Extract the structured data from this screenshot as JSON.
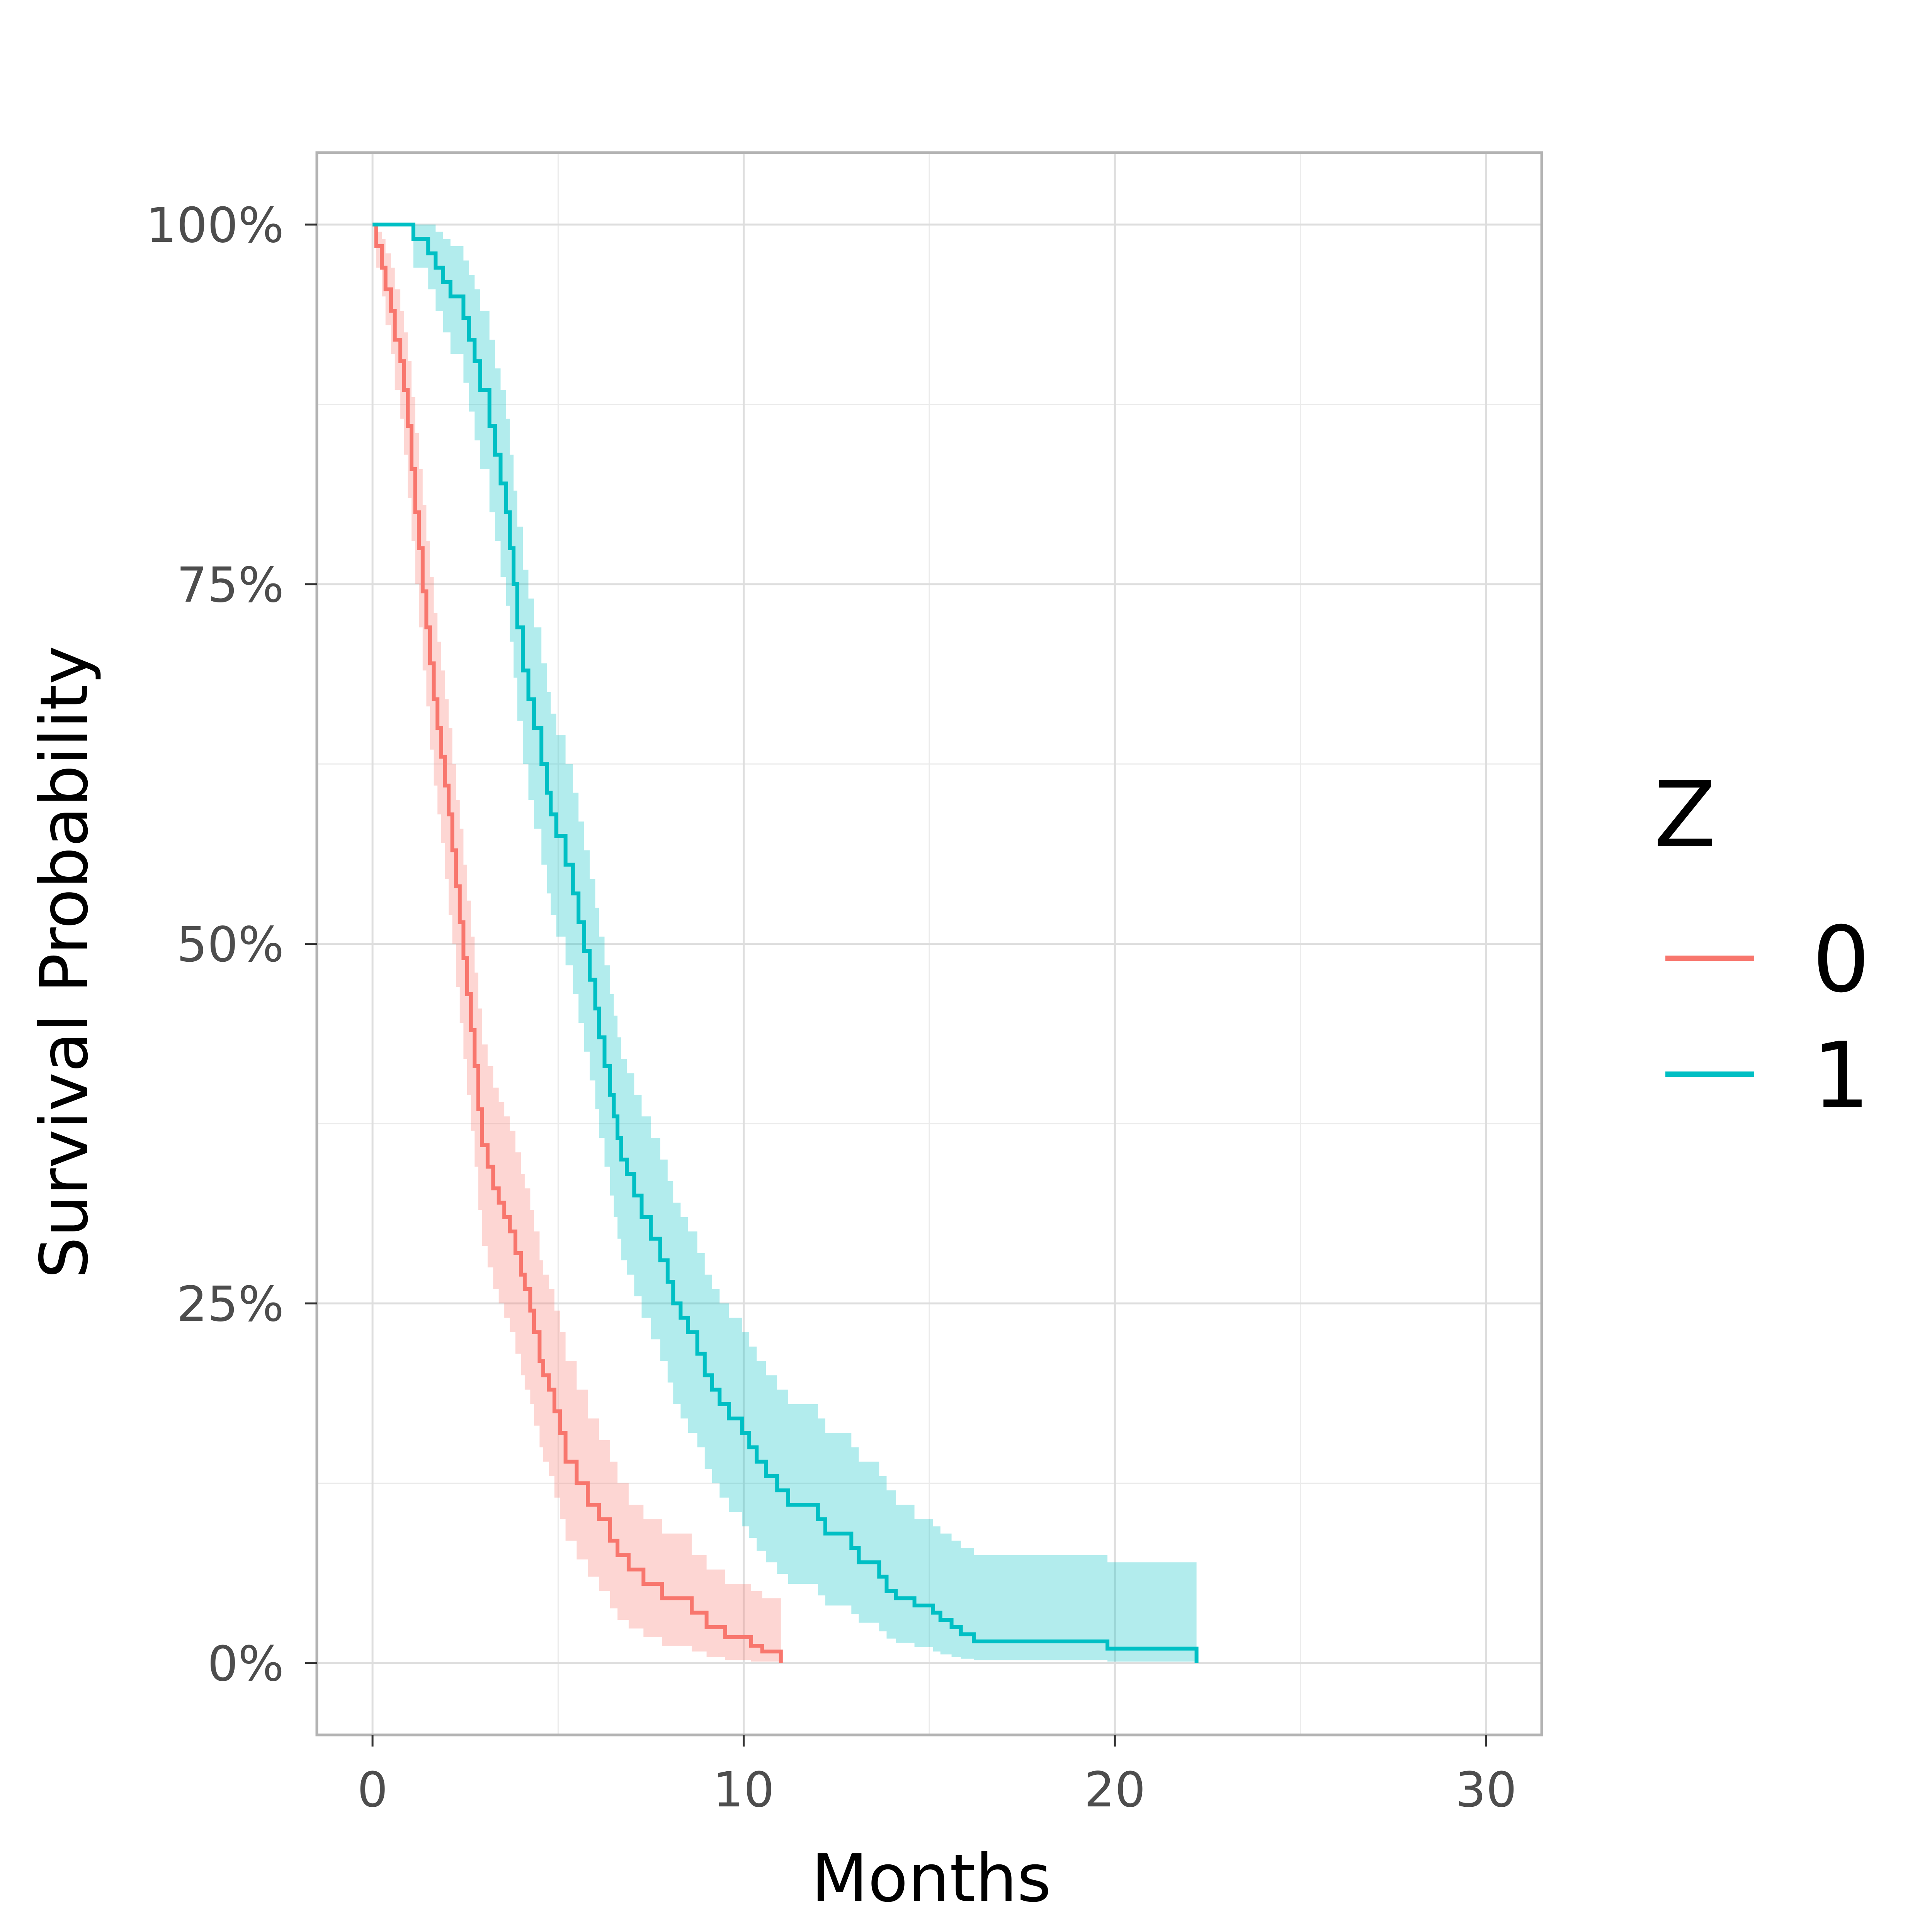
{
  "chart_data": {
    "type": "line",
    "title": "",
    "xlabel": "Months",
    "ylabel": "Survival Probability",
    "xlim": [
      -1.5,
      31.5
    ],
    "ylim": [
      -0.05,
      1.05
    ],
    "x_ticks": [
      0,
      10,
      20,
      30
    ],
    "x_tick_labels": [
      "0",
      "10",
      "20",
      "30"
    ],
    "y_ticks": [
      0,
      0.25,
      0.5,
      0.75,
      1.0
    ],
    "y_tick_labels": [
      "0%",
      "25%",
      "50%",
      "75%",
      "100%"
    ],
    "grid": true,
    "legend": {
      "title": "Z",
      "position": "right",
      "entries": [
        "0",
        "1"
      ]
    },
    "series": [
      {
        "name": "0",
        "color": "#F8766D",
        "x": [
          0,
          0.1,
          0.25,
          0.35,
          0.5,
          0.6,
          0.75,
          0.85,
          0.95,
          1.05,
          1.15,
          1.25,
          1.35,
          1.45,
          1.55,
          1.65,
          1.75,
          1.85,
          1.95,
          2.05,
          2.15,
          2.25,
          2.35,
          2.45,
          2.55,
          2.65,
          2.75,
          2.85,
          2.95,
          3.1,
          3.25,
          3.4,
          3.55,
          3.7,
          3.85,
          4.0,
          4.1,
          4.25,
          4.35,
          4.5,
          4.6,
          4.75,
          4.9,
          5.05,
          5.2,
          5.5,
          5.8,
          6.1,
          6.4,
          6.6,
          6.9,
          7.3,
          7.8,
          8.6,
          9.0,
          9.5,
          10.2,
          10.5,
          11.0
        ],
        "y": [
          1.0,
          0.985,
          0.97,
          0.955,
          0.94,
          0.92,
          0.905,
          0.885,
          0.86,
          0.83,
          0.8,
          0.775,
          0.745,
          0.72,
          0.695,
          0.67,
          0.65,
          0.63,
          0.61,
          0.59,
          0.565,
          0.54,
          0.515,
          0.49,
          0.465,
          0.44,
          0.415,
          0.385,
          0.36,
          0.345,
          0.33,
          0.32,
          0.31,
          0.3,
          0.285,
          0.27,
          0.26,
          0.245,
          0.23,
          0.21,
          0.2,
          0.19,
          0.175,
          0.16,
          0.14,
          0.125,
          0.11,
          0.1,
          0.085,
          0.075,
          0.065,
          0.055,
          0.045,
          0.035,
          0.025,
          0.018,
          0.012,
          0.008,
          0.002
        ],
        "ci_lower": [
          1.0,
          0.97,
          0.95,
          0.93,
          0.91,
          0.885,
          0.865,
          0.84,
          0.81,
          0.78,
          0.75,
          0.72,
          0.69,
          0.665,
          0.635,
          0.61,
          0.59,
          0.57,
          0.545,
          0.52,
          0.5,
          0.47,
          0.445,
          0.42,
          0.395,
          0.37,
          0.345,
          0.315,
          0.29,
          0.275,
          0.26,
          0.25,
          0.24,
          0.23,
          0.215,
          0.2,
          0.19,
          0.18,
          0.165,
          0.15,
          0.14,
          0.13,
          0.115,
          0.1,
          0.085,
          0.072,
          0.06,
          0.05,
          0.038,
          0.03,
          0.024,
          0.018,
          0.012,
          0.008,
          0.004,
          0.002,
          0.001,
          0.001,
          0.0
        ],
        "ci_upper": [
          1.0,
          0.995,
          0.99,
          0.98,
          0.97,
          0.955,
          0.94,
          0.925,
          0.905,
          0.88,
          0.855,
          0.83,
          0.805,
          0.78,
          0.755,
          0.73,
          0.71,
          0.69,
          0.67,
          0.65,
          0.625,
          0.6,
          0.58,
          0.555,
          0.53,
          0.505,
          0.48,
          0.455,
          0.43,
          0.415,
          0.4,
          0.39,
          0.38,
          0.37,
          0.355,
          0.34,
          0.33,
          0.315,
          0.3,
          0.28,
          0.27,
          0.26,
          0.245,
          0.23,
          0.21,
          0.19,
          0.17,
          0.155,
          0.14,
          0.125,
          0.11,
          0.1,
          0.09,
          0.075,
          0.065,
          0.055,
          0.05,
          0.045,
          0.04
        ]
      },
      {
        "name": "1",
        "color": "#00BFC4",
        "x": [
          0,
          1.1,
          1.5,
          1.7,
          1.9,
          2.1,
          2.45,
          2.6,
          2.75,
          2.9,
          3.15,
          3.3,
          3.45,
          3.6,
          3.7,
          3.8,
          3.9,
          4.05,
          4.2,
          4.35,
          4.55,
          4.7,
          4.8,
          4.95,
          5.2,
          5.4,
          5.55,
          5.7,
          5.85,
          6.0,
          6.1,
          6.25,
          6.4,
          6.5,
          6.6,
          6.7,
          6.85,
          7.05,
          7.25,
          7.5,
          7.75,
          7.95,
          8.1,
          8.3,
          8.5,
          8.75,
          8.95,
          9.15,
          9.35,
          9.6,
          9.95,
          10.15,
          10.35,
          10.6,
          10.9,
          11.2,
          12.0,
          12.2,
          12.9,
          13.1,
          13.65,
          13.85,
          14.1,
          14.6,
          15.1,
          15.3,
          15.6,
          15.85,
          16.2,
          19.8,
          22.2
        ],
        "y": [
          1.0,
          0.99,
          0.98,
          0.97,
          0.96,
          0.95,
          0.935,
          0.92,
          0.905,
          0.885,
          0.86,
          0.84,
          0.82,
          0.8,
          0.775,
          0.75,
          0.72,
          0.69,
          0.67,
          0.65,
          0.625,
          0.605,
          0.59,
          0.575,
          0.555,
          0.535,
          0.515,
          0.495,
          0.475,
          0.455,
          0.435,
          0.415,
          0.395,
          0.38,
          0.365,
          0.35,
          0.34,
          0.325,
          0.31,
          0.295,
          0.28,
          0.265,
          0.25,
          0.24,
          0.23,
          0.215,
          0.2,
          0.19,
          0.18,
          0.17,
          0.16,
          0.15,
          0.14,
          0.13,
          0.12,
          0.11,
          0.1,
          0.09,
          0.08,
          0.07,
          0.06,
          0.05,
          0.045,
          0.04,
          0.035,
          0.03,
          0.025,
          0.02,
          0.015,
          0.01,
          0.002
        ],
        "ci_lower": [
          1.0,
          0.97,
          0.955,
          0.94,
          0.925,
          0.91,
          0.89,
          0.87,
          0.85,
          0.83,
          0.8,
          0.78,
          0.755,
          0.735,
          0.71,
          0.685,
          0.655,
          0.625,
          0.6,
          0.58,
          0.555,
          0.535,
          0.52,
          0.505,
          0.485,
          0.465,
          0.445,
          0.425,
          0.405,
          0.385,
          0.365,
          0.345,
          0.325,
          0.31,
          0.295,
          0.28,
          0.27,
          0.255,
          0.24,
          0.225,
          0.21,
          0.195,
          0.18,
          0.17,
          0.16,
          0.15,
          0.135,
          0.125,
          0.115,
          0.105,
          0.095,
          0.087,
          0.078,
          0.07,
          0.062,
          0.055,
          0.047,
          0.04,
          0.034,
          0.028,
          0.022,
          0.017,
          0.014,
          0.011,
          0.008,
          0.006,
          0.004,
          0.003,
          0.002,
          0.001,
          0.0
        ],
        "ci_upper": [
          1.0,
          1.0,
          1.0,
          0.995,
          0.99,
          0.985,
          0.975,
          0.965,
          0.955,
          0.94,
          0.92,
          0.9,
          0.885,
          0.865,
          0.84,
          0.815,
          0.79,
          0.76,
          0.74,
          0.72,
          0.695,
          0.675,
          0.66,
          0.645,
          0.625,
          0.605,
          0.585,
          0.565,
          0.545,
          0.525,
          0.505,
          0.485,
          0.465,
          0.45,
          0.435,
          0.42,
          0.41,
          0.395,
          0.38,
          0.365,
          0.35,
          0.335,
          0.32,
          0.31,
          0.3,
          0.285,
          0.27,
          0.26,
          0.25,
          0.24,
          0.23,
          0.22,
          0.21,
          0.2,
          0.19,
          0.18,
          0.17,
          0.16,
          0.15,
          0.14,
          0.13,
          0.12,
          0.11,
          0.1,
          0.095,
          0.09,
          0.085,
          0.08,
          0.075,
          0.07,
          0.065
        ]
      }
    ]
  }
}
